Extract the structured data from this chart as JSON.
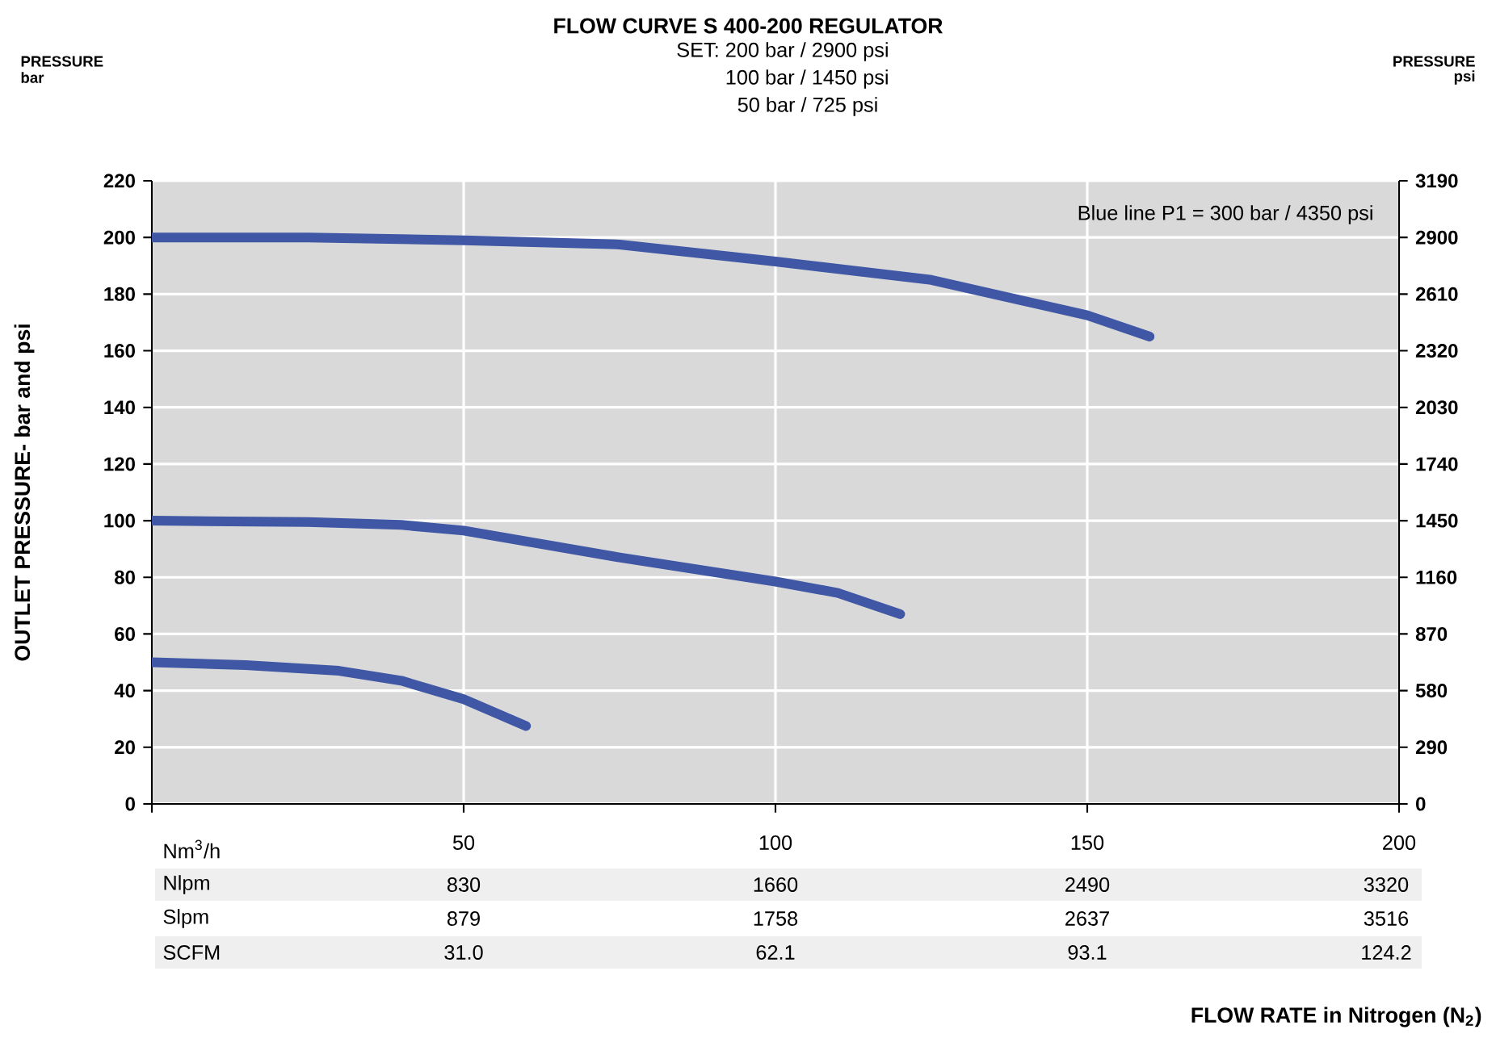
{
  "chart_data": {
    "type": "line",
    "title": "FLOW CURVE S 400-200 REGULATOR",
    "subtitle": "SET: 200 bar / 2900 psi",
    "ylabel": "OUTLET PRESSURE- bar and psi",
    "xlim": [
      0,
      200
    ],
    "xticks": [
      {
        "value": 0,
        "label": null
      },
      50,
      100,
      150,
      200
    ],
    "ylim": [
      0,
      220
    ],
    "yticks": [
      0,
      20,
      40,
      60,
      80,
      100,
      120,
      140,
      160,
      180,
      200,
      220
    ],
    "y2lim": [
      0,
      3190
    ],
    "y2ticks": [
      0,
      290,
      580,
      870,
      1160,
      1450,
      1740,
      2030,
      2320,
      2610,
      2900,
      3190
    ],
    "grid": true,
    "line_style": "solid",
    "series": [
      {
        "color": "#3f57a5",
        "x": [
          0,
          25,
          50,
          75,
          100,
          125,
          150,
          160
        ],
        "values": [
          200,
          200,
          199,
          197.5,
          191.5,
          185,
          172.5,
          165
        ]
      },
      {
        "color": "#3f57a5",
        "x": [
          0,
          25,
          40,
          50,
          75,
          100,
          110,
          120
        ],
        "values": [
          100,
          99.5,
          98.5,
          96.5,
          87,
          78.5,
          74.5,
          67
        ]
      },
      {
        "color": "#3f57a5",
        "x": [
          0,
          15,
          30,
          40,
          50,
          60
        ],
        "values": [
          50,
          49,
          47,
          43.5,
          37,
          27.5
        ]
      }
    ],
    "annotations": [
      "100 bar / 1450 psi",
      "50 bar / 725 psi",
      "PRESSURE",
      "bar",
      "PRESSURE",
      "psi",
      "Blue line P1 = 300 bar / 4350 psi",
      "Nm$^{3}$/h",
      "FLOW RATE in Nitrogen (N$_{2}$)",
      "Nlpm",
      "830",
      "1660",
      "2490",
      "3320",
      "Slpm",
      "879",
      "1758",
      "2637",
      "3516",
      "SCFM",
      "31.0",
      "62.1",
      "93.1",
      "124.2"
    ]
  }
}
